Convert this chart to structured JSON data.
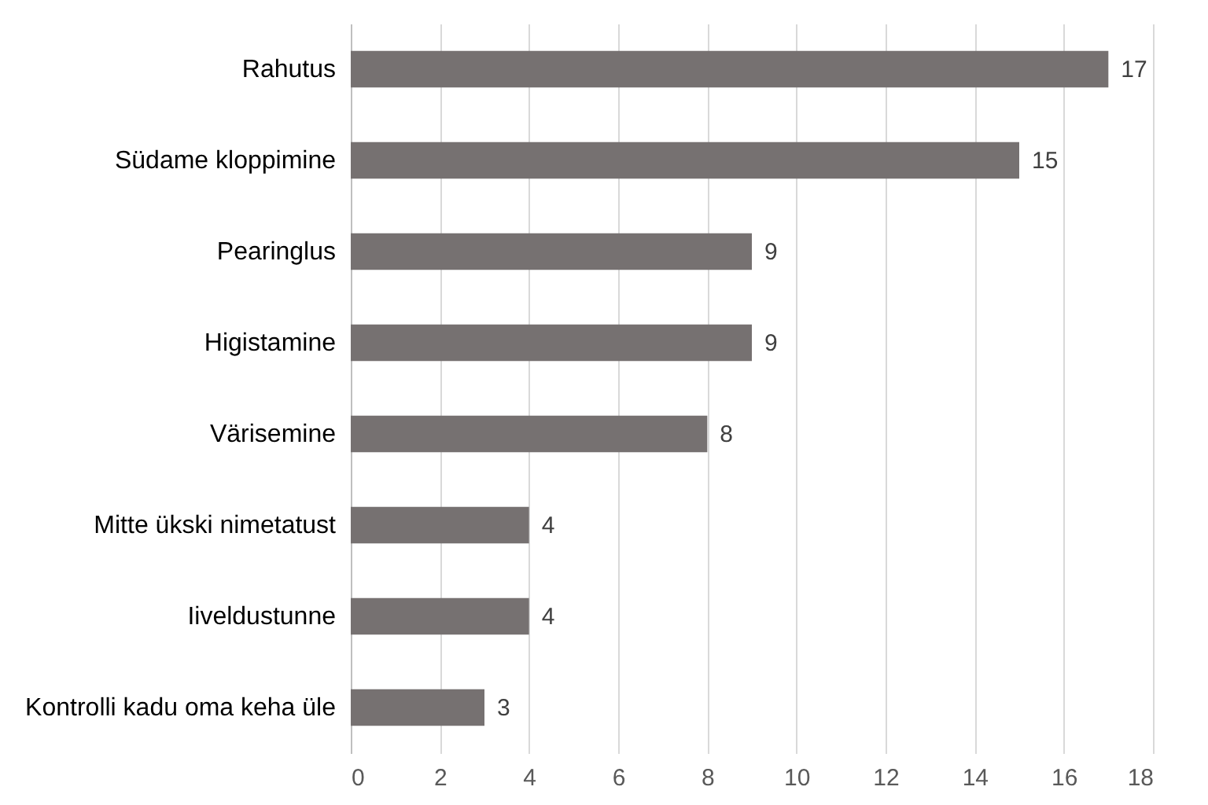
{
  "chart_data": {
    "type": "bar",
    "orientation": "horizontal",
    "categories": [
      "Rahutus",
      "Südame kloppimine",
      "Pearinglus",
      "Higistamine",
      "Värisemine",
      "Mitte ükski nimetatust",
      "Iiveldustunne",
      "Kontrolli kadu oma keha üle"
    ],
    "values": [
      17,
      15,
      9,
      9,
      8,
      4,
      4,
      3
    ],
    "color": "#767171",
    "xlim": [
      0,
      18
    ],
    "xticks": [
      0,
      2,
      4,
      6,
      8,
      10,
      12,
      14,
      16,
      18
    ],
    "grid": "x",
    "data_labels": true
  }
}
